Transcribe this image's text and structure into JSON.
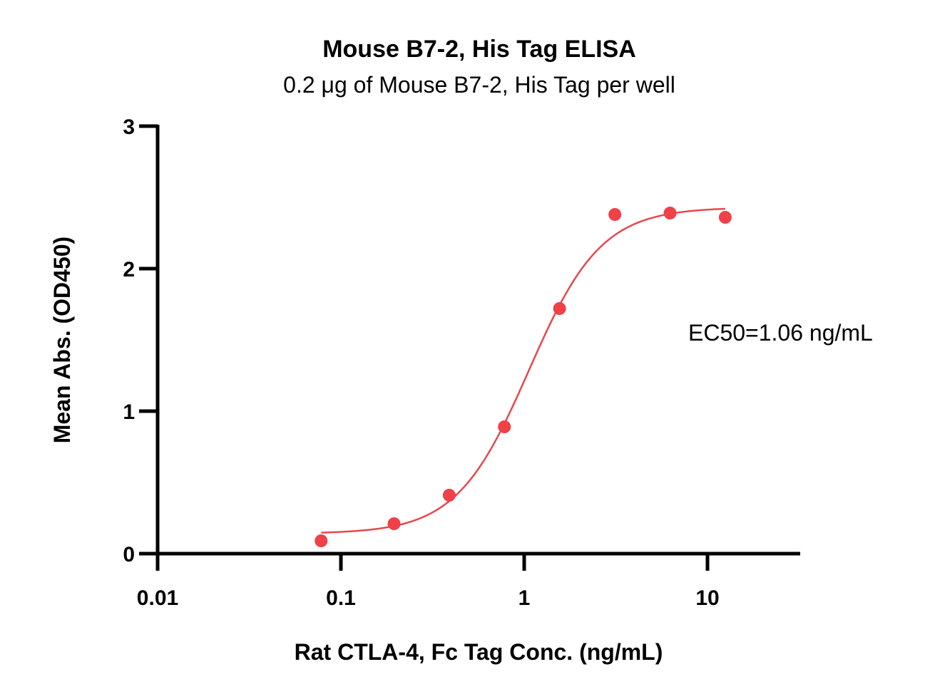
{
  "chart_data": {
    "type": "scatter",
    "title": "Mouse B7-2, His Tag ELISA",
    "subtitle": "0.2 μg of Mouse B7-2, His Tag per well",
    "xlabel": "Rat CTLA-4, Fc Tag Conc. (ng/mL)",
    "ylabel": "Mean Abs. (OD450)",
    "x_scale": "log",
    "xlim": [
      0.01,
      30
    ],
    "ylim": [
      0,
      3
    ],
    "x_ticks": [
      0.01,
      0.1,
      1,
      10
    ],
    "x_tick_labels": [
      "0.01",
      "0.1",
      "1",
      "10"
    ],
    "y_ticks": [
      0,
      1,
      2,
      3
    ],
    "y_tick_labels": [
      "0",
      "1",
      "2",
      "3"
    ],
    "grid": false,
    "series": [
      {
        "x": [
          0.078,
          0.195,
          0.39,
          0.78,
          1.56,
          3.125,
          6.25,
          12.5
        ],
        "y": [
          0.09,
          0.21,
          0.41,
          0.89,
          1.72,
          2.38,
          2.39,
          2.36
        ]
      }
    ],
    "fit_curve": {
      "model": "4PL",
      "bottom": 0.14,
      "top": 2.43,
      "ec50": 1.06,
      "hill": 2.2,
      "x_range": [
        0.078,
        12.5
      ]
    },
    "annotation": "EC50=1.06 ng/mL",
    "colors": {
      "points": "#f04048",
      "curve": "#e8474d",
      "axes": "#000000"
    }
  }
}
